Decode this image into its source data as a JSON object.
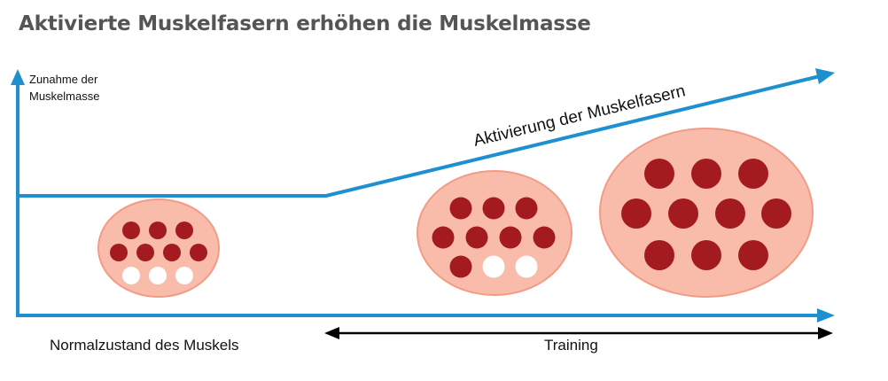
{
  "title": "Aktivierte Muskelfasern erhöhen die Muskelmasse",
  "y_axis_label_line1": "Zunahme der",
  "y_axis_label_line2": "Muskelmasse",
  "activation_label": "Aktivierung der Muskelfasern",
  "normal_state_label": "Normalzustand des Muskels",
  "training_label": "Training",
  "colors": {
    "axis_blue": "#1e90d0",
    "muscle_fill": "#f9bcaa",
    "muscle_stroke": "#f29b87",
    "active_fiber": "#a31a1f",
    "inactive_fiber": "#ffffff",
    "title_gray": "#555555"
  },
  "muscles": [
    {
      "name": "normal",
      "active_fibers": 7,
      "inactive_fibers": 4
    },
    {
      "name": "training-early",
      "active_fibers": 9,
      "inactive_fibers": 2
    },
    {
      "name": "training-late",
      "active_fibers": 11,
      "inactive_fibers": 0
    }
  ]
}
